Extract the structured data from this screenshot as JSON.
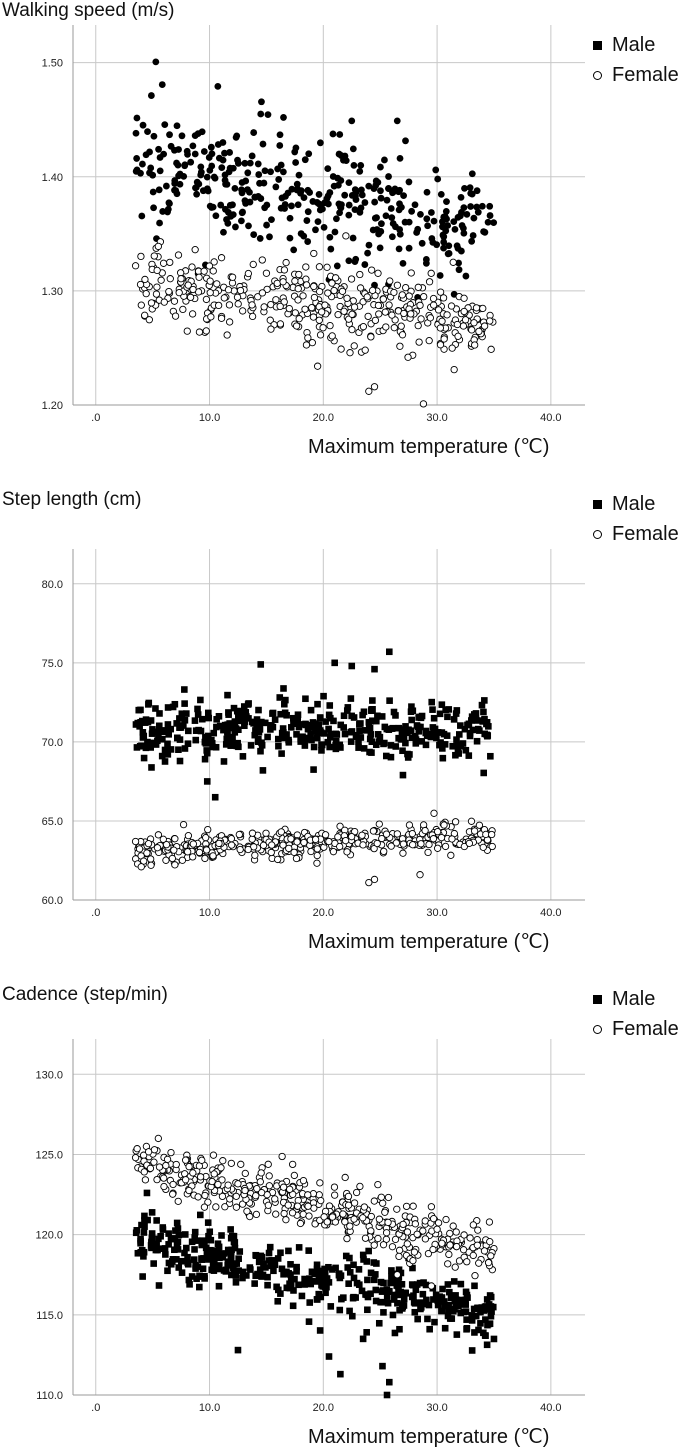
{
  "legend": {
    "male": "Male",
    "female": "Female"
  },
  "colors": {
    "marker": "#000000",
    "grid": "#c8c8c8",
    "axis": "#9a9a9a"
  },
  "chart_data": [
    {
      "type": "scatter",
      "title": "Walking speed (m/s)",
      "xlabel": "Maximum temperature (℃)",
      "ylabel": "Walking speed (m/s)",
      "xlim": [
        -2,
        43
      ],
      "ylim": [
        1.2,
        1.533
      ],
      "xticks": [
        ".0",
        "10.0",
        "20.0",
        "30.0",
        "40.0"
      ],
      "yticks": [
        "1.20",
        "1.30",
        "1.40",
        "1.50"
      ],
      "grid": true,
      "legend_position": "top-right",
      "series": [
        {
          "name": "Male",
          "marker": "filled-circle",
          "trend": {
            "x": [
              3.5,
              35
            ],
            "y": [
              1.41,
              1.355
            ]
          },
          "spread": 0.028,
          "n": 380,
          "outliers": [
            [
              14.5,
              1.455
            ],
            [
              16.5,
              1.452
            ],
            [
              22.5,
              1.449
            ],
            [
              26.5,
              1.449
            ],
            [
              20.5,
              1.31
            ],
            [
              24.5,
              1.305
            ],
            [
              9.0,
              1.315
            ],
            [
              31.5,
              1.297
            ]
          ]
        },
        {
          "name": "Female",
          "marker": "open-circle",
          "trend": {
            "x": [
              3.5,
              35
            ],
            "y": [
              1.305,
              1.272
            ]
          },
          "spread": 0.016,
          "n": 420,
          "outliers": [
            [
              24.0,
              1.212
            ],
            [
              24.5,
              1.216
            ],
            [
              28.8,
              1.201
            ],
            [
              31.5,
              1.231
            ],
            [
              19.5,
              1.234
            ],
            [
              5.5,
              1.339
            ],
            [
              3.5,
              1.322
            ]
          ]
        }
      ]
    },
    {
      "type": "scatter",
      "title": "Step length (cm)",
      "xlabel": "Maximum temperature (℃)",
      "ylabel": "Step length (cm)",
      "xlim": [
        -2,
        43
      ],
      "ylim": [
        60.0,
        82.2
      ],
      "xticks": [
        ".0",
        "10.0",
        "20.0",
        "30.0",
        "40.0"
      ],
      "yticks": [
        "60.0",
        "65.0",
        "70.0",
        "75.0",
        "80.0"
      ],
      "grid": true,
      "legend_position": "top-right",
      "series": [
        {
          "name": "Male",
          "marker": "filled-square",
          "trend": {
            "x": [
              3.5,
              35
            ],
            "y": [
              70.8,
              70.8
            ]
          },
          "spread": 0.9,
          "n": 420,
          "outliers": [
            [
              14.5,
              74.9
            ],
            [
              21.0,
              75.0
            ],
            [
              22.5,
              74.8
            ],
            [
              25.8,
              75.7
            ],
            [
              24.5,
              74.6
            ],
            [
              10.5,
              66.5
            ],
            [
              9.8,
              67.5
            ],
            [
              27.0,
              67.9
            ]
          ]
        },
        {
          "name": "Female",
          "marker": "open-circle",
          "trend": {
            "x": [
              3.5,
              35
            ],
            "y": [
              63.2,
              64.0
            ]
          },
          "spread": 0.45,
          "n": 460,
          "outliers": [
            [
              24.0,
              61.1
            ],
            [
              24.5,
              61.3
            ],
            [
              28.5,
              61.6
            ],
            [
              4.0,
              62.1
            ],
            [
              3.5,
              63.7
            ]
          ]
        }
      ]
    },
    {
      "type": "scatter",
      "title": "Cadence (step/min)",
      "xlabel": "Maximum temperature (℃)",
      "ylabel": "Cadence (step/min)",
      "xlim": [
        -2,
        43
      ],
      "ylim": [
        110.0,
        132.2
      ],
      "xticks": [
        ".0",
        "10.0",
        "20.0",
        "30.0",
        "40.0"
      ],
      "yticks": [
        "110.0",
        "115.0",
        "120.0",
        "125.0",
        "130.0"
      ],
      "grid": true,
      "legend_position": "top-right",
      "series": [
        {
          "name": "Male",
          "marker": "filled-square",
          "trend": {
            "x": [
              3.5,
              35
            ],
            "y": [
              119.5,
              115.0
            ]
          },
          "spread": 0.9,
          "n": 440,
          "outliers": [
            [
              4.5,
              122.6
            ],
            [
              12.5,
              112.8
            ],
            [
              20.5,
              112.4
            ],
            [
              21.5,
              111.3
            ],
            [
              25.2,
              111.8
            ],
            [
              25.8,
              110.8
            ],
            [
              25.6,
              110.0
            ],
            [
              23.5,
              113.5
            ]
          ]
        },
        {
          "name": "Female",
          "marker": "open-circle",
          "trend": {
            "x": [
              3.5,
              35
            ],
            "y": [
              124.5,
              119.0
            ]
          },
          "spread": 0.8,
          "n": 460,
          "outliers": [
            [
              5.5,
              126.0
            ],
            [
              3.5,
              124.8
            ],
            [
              29.5,
              116.8
            ],
            [
              26.5,
              117.5
            ]
          ]
        }
      ]
    }
  ]
}
